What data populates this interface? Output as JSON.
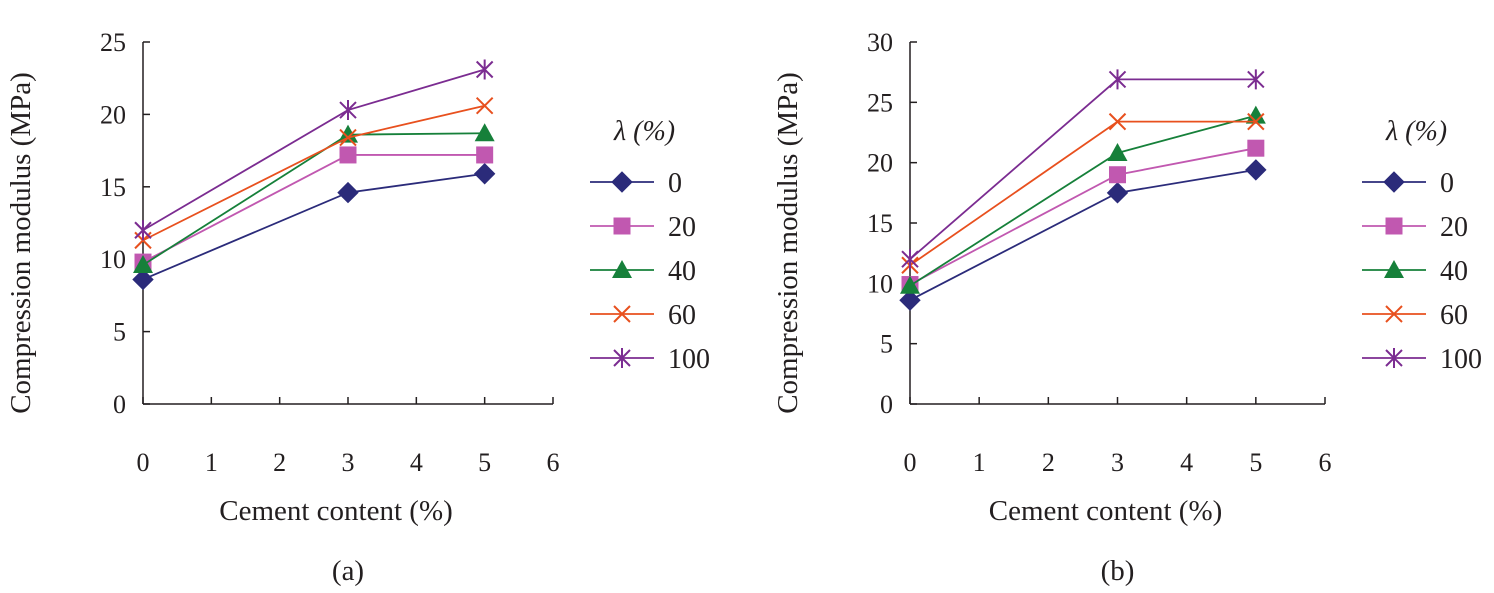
{
  "colors": {
    "axis": "#231f20",
    "series": [
      "#2b2b7a",
      "#c158b0",
      "#16803a",
      "#e8501e",
      "#7b2c91"
    ]
  },
  "chart_data": [
    {
      "type": "line",
      "panel_label": "(a)",
      "xlabel": "Cement content (%)",
      "ylabel": "Compression modulus (MPa)",
      "xlim": [
        0,
        6
      ],
      "ylim": [
        0,
        25
      ],
      "x_ticks": [
        0,
        1,
        2,
        3,
        4,
        5,
        6
      ],
      "y_ticks": [
        0,
        5,
        10,
        15,
        20,
        25
      ],
      "x": [
        0,
        3,
        5
      ],
      "legend_title": "λ (%)",
      "legend_position": "right",
      "grid": false,
      "series": [
        {
          "name": "0",
          "marker": "diamond",
          "values": [
            8.6,
            14.6,
            15.9
          ]
        },
        {
          "name": "20",
          "marker": "square",
          "values": [
            9.8,
            17.2,
            17.2
          ]
        },
        {
          "name": "40",
          "marker": "triangle",
          "values": [
            9.6,
            18.6,
            18.7
          ]
        },
        {
          "name": "60",
          "marker": "x",
          "values": [
            11.3,
            18.4,
            20.6
          ]
        },
        {
          "name": "100",
          "marker": "asterisk",
          "values": [
            12.0,
            20.3,
            23.1
          ]
        }
      ]
    },
    {
      "type": "line",
      "panel_label": "(b)",
      "xlabel": "Cement content (%)",
      "ylabel": "Compression modulus (MPa)",
      "xlim": [
        0,
        6
      ],
      "ylim": [
        0,
        30
      ],
      "x_ticks": [
        0,
        1,
        2,
        3,
        4,
        5,
        6
      ],
      "y_ticks": [
        0,
        5,
        10,
        15,
        20,
        25,
        30
      ],
      "x": [
        0,
        3,
        5
      ],
      "legend_title": "λ (%)",
      "legend_position": "right",
      "grid": false,
      "series": [
        {
          "name": "0",
          "marker": "diamond",
          "values": [
            8.6,
            17.5,
            19.4
          ]
        },
        {
          "name": "20",
          "marker": "square",
          "values": [
            9.9,
            19.0,
            21.2
          ]
        },
        {
          "name": "40",
          "marker": "triangle",
          "values": [
            9.8,
            20.8,
            23.9
          ]
        },
        {
          "name": "60",
          "marker": "x",
          "values": [
            11.5,
            23.4,
            23.4
          ]
        },
        {
          "name": "100",
          "marker": "asterisk",
          "values": [
            12.0,
            26.9,
            26.9
          ]
        }
      ]
    }
  ]
}
